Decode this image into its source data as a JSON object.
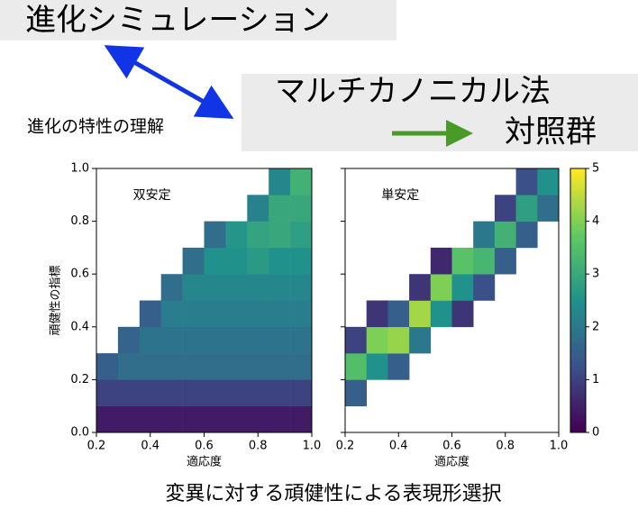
{
  "slide": {
    "title": "進化シミュレーション",
    "method": "マルチカノニカル法",
    "control": "対照群",
    "note": "進化の特性の理解",
    "caption": "変異に対する頑健性による表現形選択"
  },
  "chart_data": [
    {
      "type": "heatmap",
      "annotation": "双安定",
      "xlabel": "適応度",
      "ylabel": "頑健性の指標",
      "colormap": "viridis",
      "x_bins": [
        0.2,
        0.28,
        0.36,
        0.44,
        0.52,
        0.6,
        0.68,
        0.76,
        0.84,
        0.92,
        1.0
      ],
      "y_bins": [
        0,
        0.1,
        0.2,
        0.3,
        0.4,
        0.5,
        0.6,
        0.7,
        0.8,
        0.9,
        1.0
      ],
      "values": [
        [
          0.4,
          0.4,
          0.4,
          0.4,
          0.4,
          0.4,
          0.4,
          0.4,
          0.4,
          0.4
        ],
        [
          1.0,
          1.0,
          1.0,
          1.0,
          1.0,
          1.0,
          1.0,
          1.0,
          1.0,
          1.0
        ],
        [
          1.5,
          1.8,
          1.8,
          1.8,
          1.8,
          1.8,
          1.8,
          1.8,
          1.8,
          1.8
        ],
        [
          null,
          1.6,
          1.9,
          1.9,
          1.9,
          1.9,
          1.9,
          1.9,
          1.9,
          1.9
        ],
        [
          null,
          null,
          1.5,
          2.1,
          2.1,
          2.1,
          2.1,
          2.1,
          2.1,
          2.1
        ],
        [
          null,
          null,
          null,
          1.8,
          2.3,
          2.3,
          2.3,
          2.3,
          2.3,
          2.3
        ],
        [
          null,
          null,
          null,
          null,
          1.8,
          2.5,
          2.5,
          2.7,
          2.5,
          2.5
        ],
        [
          null,
          null,
          null,
          null,
          null,
          1.8,
          2.6,
          2.9,
          3.0,
          2.8
        ],
        [
          null,
          null,
          null,
          null,
          null,
          null,
          null,
          2.2,
          3.0,
          3.0
        ],
        [
          null,
          null,
          null,
          null,
          null,
          null,
          null,
          null,
          2.3,
          3.2
        ]
      ],
      "xlim": [
        0.2,
        1.0
      ],
      "ylim": [
        0,
        1.0
      ],
      "zlim": [
        0,
        5
      ],
      "xticks": [
        0.2,
        0.4,
        0.6,
        0.8,
        {
          "value": 1,
          "label": "1.0"
        }
      ],
      "yticks": [
        {
          "value": 0,
          "label": "0.0"
        },
        0.2,
        0.4,
        0.6,
        0.8,
        {
          "value": 1,
          "label": "1.0"
        }
      ]
    },
    {
      "type": "heatmap",
      "annotation": "単安定",
      "xlabel": "適応度",
      "colormap": "viridis",
      "sharey": true,
      "colorbar": true,
      "x_bins": [
        0.2,
        0.28,
        0.36,
        0.44,
        0.52,
        0.6,
        0.68,
        0.76,
        0.84,
        0.92,
        1.0
      ],
      "y_bins": [
        0,
        0.1,
        0.2,
        0.3,
        0.4,
        0.5,
        0.6,
        0.7,
        0.8,
        0.9,
        1.0
      ],
      "values": [
        [
          null,
          null,
          null,
          null,
          null,
          null,
          null,
          null,
          null,
          null
        ],
        [
          1.5,
          null,
          null,
          null,
          null,
          null,
          null,
          null,
          null,
          null
        ],
        [
          3.5,
          2.5,
          1.5,
          null,
          null,
          null,
          null,
          null,
          null,
          null
        ],
        [
          1.0,
          4.0,
          4.2,
          2.0,
          null,
          null,
          null,
          null,
          null,
          null
        ],
        [
          null,
          0.8,
          1.5,
          4.3,
          2.5,
          0.8,
          null,
          null,
          null,
          null
        ],
        [
          null,
          null,
          null,
          0.8,
          4.0,
          2.5,
          1.2,
          null,
          null,
          null
        ],
        [
          null,
          null,
          null,
          null,
          0.6,
          3.6,
          3.3,
          1.5,
          null,
          null
        ],
        [
          null,
          null,
          null,
          null,
          null,
          null,
          2.0,
          3.2,
          1.5,
          null
        ],
        [
          null,
          null,
          null,
          null,
          null,
          null,
          null,
          1.0,
          2.8,
          1.8
        ],
        [
          null,
          null,
          null,
          null,
          null,
          null,
          null,
          null,
          1.2,
          2.5
        ]
      ],
      "xlim": [
        0.2,
        1.0
      ],
      "ylim": [
        0,
        1.0
      ],
      "zlim": [
        0,
        5
      ],
      "xticks": [
        0.2,
        0.4,
        0.6,
        0.8,
        {
          "value": 1,
          "label": "1.0"
        }
      ],
      "zticks": [
        0,
        1,
        2,
        3,
        4,
        5
      ]
    }
  ]
}
